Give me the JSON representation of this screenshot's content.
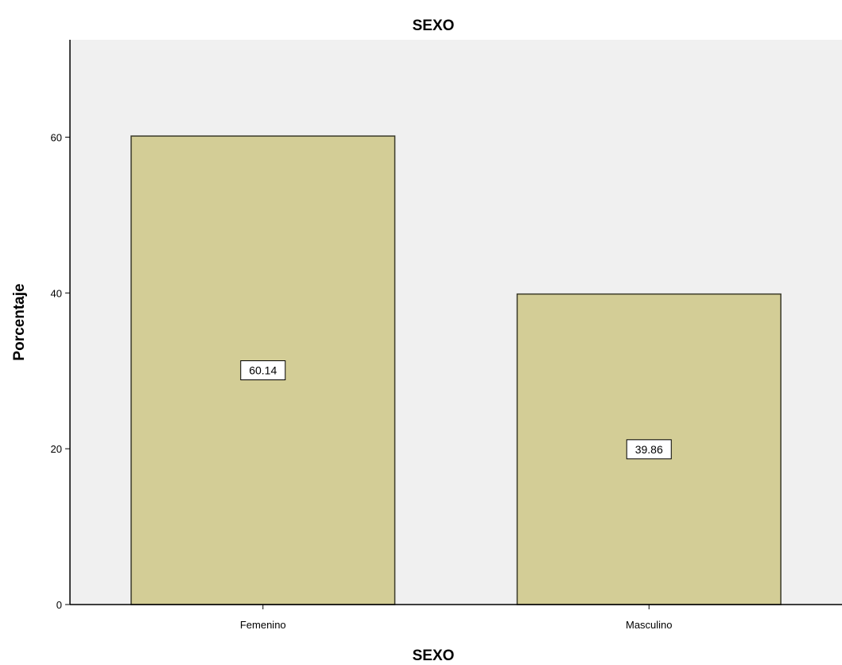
{
  "chart_data": {
    "type": "bar",
    "title": "SEXO",
    "xlabel": "SEXO",
    "ylabel": "Porcentaje",
    "categories": [
      "Femenino",
      "Masculino"
    ],
    "values": [
      60.14,
      39.86
    ],
    "data_labels": [
      "60.14",
      "39.86"
    ],
    "ylim": [
      0,
      72.5
    ],
    "yticks": [
      0,
      20,
      40,
      60
    ],
    "ytick_labels": [
      "0",
      "20",
      "40",
      "60"
    ],
    "grid": false,
    "legend": false,
    "colors": {
      "bar_fill": "#d3cd96",
      "bar_stroke": "#3a3a2a",
      "plot_background": "#f0f0f0",
      "axis": "#000000"
    }
  }
}
